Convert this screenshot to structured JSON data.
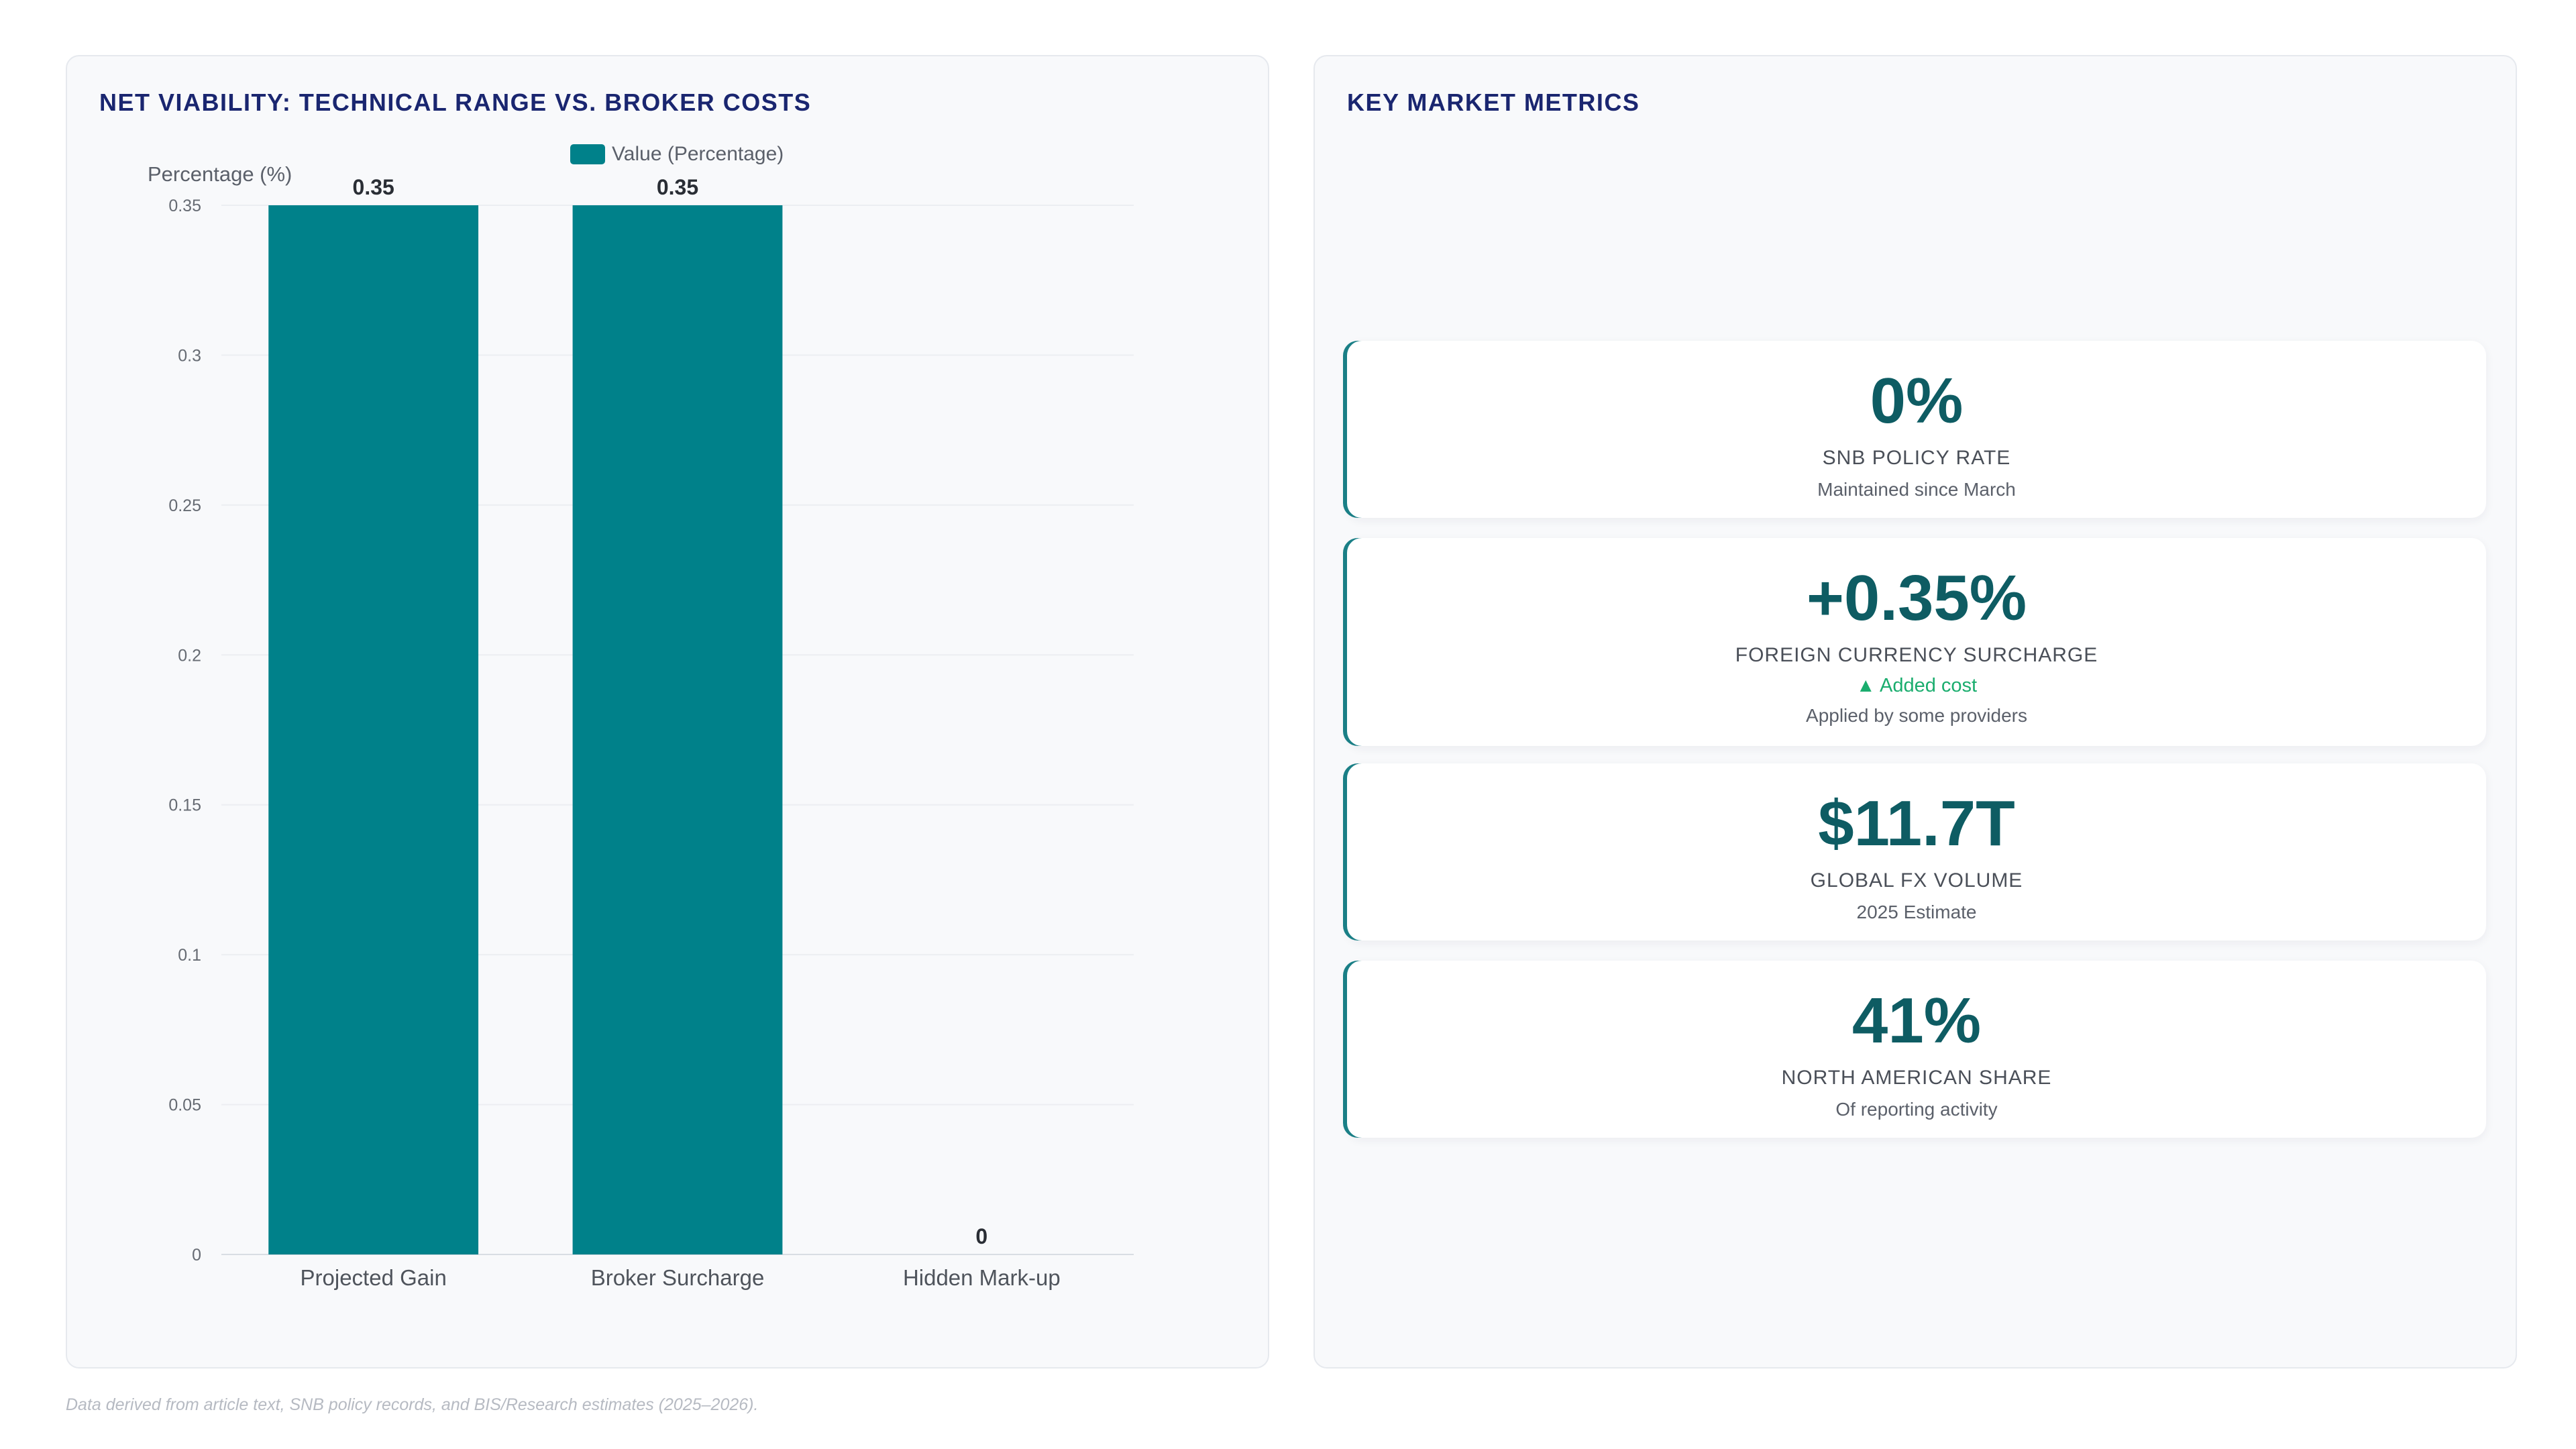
{
  "left_panel": {
    "title": "NET VIABILITY: TECHNICAL RANGE VS. BROKER COSTS"
  },
  "chart_data": {
    "type": "bar",
    "title": "NET VIABILITY: TECHNICAL RANGE VS. BROKER COSTS",
    "categories": [
      "Projected Gain",
      "Broker Surcharge",
      "Hidden Mark-up"
    ],
    "series": [
      {
        "name": "Value (Percentage)",
        "values": [
          0.35,
          0.35,
          0
        ]
      }
    ],
    "data_labels": [
      "0.35",
      "0.35",
      "0"
    ],
    "ylabel": "Percentage (%)",
    "xlabel": "",
    "ylim": [
      0,
      0.35
    ],
    "yticks": [
      "0",
      "0.05",
      "0.1",
      "0.15",
      "0.2",
      "0.25",
      "0.3",
      "0.35"
    ],
    "grid": true,
    "legend_position": "top",
    "bar_color": "#00818a"
  },
  "right_panel": {
    "title": "KEY MARKET METRICS",
    "metrics": [
      {
        "value": "0%",
        "label": "SNB POLICY RATE",
        "change": "",
        "note": "Maintained since March"
      },
      {
        "value": "+0.35%",
        "label": "FOREIGN CURRENCY SURCHARGE",
        "change": "▲ Added cost",
        "note": "Applied by some providers"
      },
      {
        "value": "$11.7T",
        "label": "GLOBAL FX VOLUME",
        "change": "",
        "note": "2025 Estimate"
      },
      {
        "value": "41%",
        "label": "NORTH AMERICAN SHARE",
        "change": "",
        "note": "Of reporting activity"
      }
    ]
  },
  "footnote": "Data derived from article text, SNB policy records, and BIS/Research estimates (2025–2026).",
  "colors": {
    "accent": "#00818a",
    "title": "#1a2670",
    "metric_value": "#0e5c63",
    "positive": "#1aad6e"
  }
}
